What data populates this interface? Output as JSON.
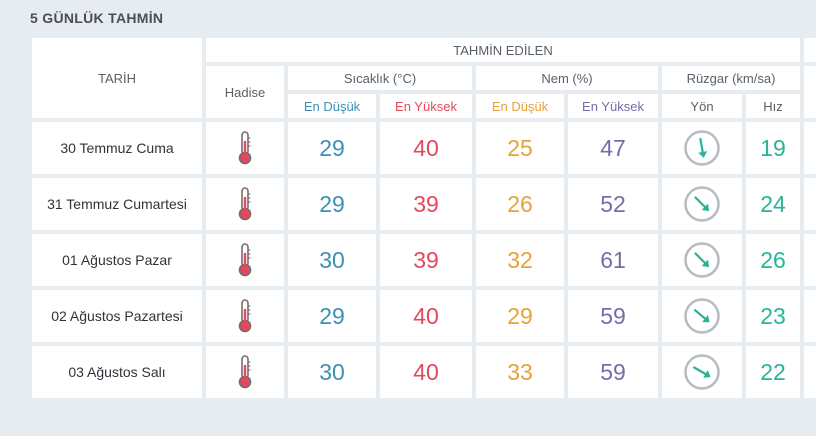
{
  "title": "5 GÜNLÜK TAHMİN",
  "headers": {
    "date": "TARİH",
    "forecast": "TAHMİN EDİLEN",
    "phenomenon": "Hadise",
    "temperature": "Sıcaklık (°C)",
    "humidity": "Nem (%)",
    "wind": "Rüzgar (km/sa)",
    "min": "En Düşük",
    "max": "En Yüksek",
    "direction": "Yön",
    "speed": "Hız"
  },
  "colors": {
    "temp_min": "#3d8fb4",
    "temp_max": "#e24a5c",
    "hum_min": "#e4a23b",
    "hum_max": "#7a6aa6",
    "wind": "#2ab399"
  },
  "rows": [
    {
      "date": "30 Temmuz Cuma",
      "icon": "thermometer-icon",
      "temp_min": "29",
      "temp_max": "40",
      "hum_min": "25",
      "hum_max": "47",
      "wind_dir_deg": 170,
      "wind_speed": "19"
    },
    {
      "date": "31 Temmuz Cumartesi",
      "icon": "thermometer-icon",
      "temp_min": "29",
      "temp_max": "39",
      "hum_min": "26",
      "hum_max": "52",
      "wind_dir_deg": 135,
      "wind_speed": "24"
    },
    {
      "date": "01 Ağustos Pazar",
      "icon": "thermometer-icon",
      "temp_min": "30",
      "temp_max": "39",
      "hum_min": "32",
      "hum_max": "61",
      "wind_dir_deg": 135,
      "wind_speed": "26"
    },
    {
      "date": "02 Ağustos Pazartesi",
      "icon": "thermometer-icon",
      "temp_min": "29",
      "temp_max": "40",
      "hum_min": "29",
      "hum_max": "59",
      "wind_dir_deg": 130,
      "wind_speed": "23"
    },
    {
      "date": "03 Ağustos Salı",
      "icon": "thermometer-icon",
      "temp_min": "30",
      "temp_max": "40",
      "hum_min": "33",
      "hum_max": "59",
      "wind_dir_deg": 120,
      "wind_speed": "22"
    }
  ]
}
